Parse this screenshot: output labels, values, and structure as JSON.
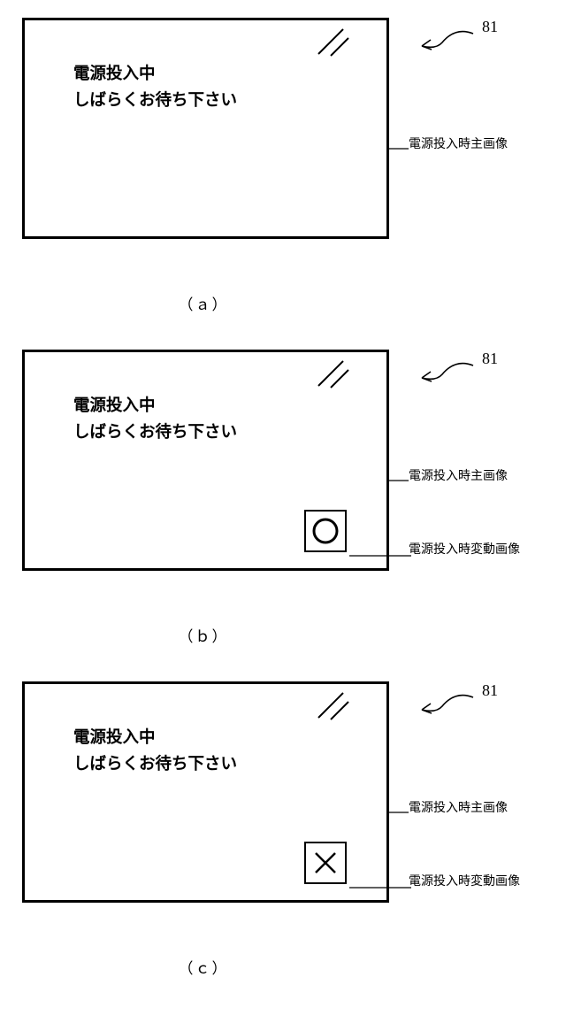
{
  "refNumber": "81",
  "screenText": {
    "line1": "電源投入中",
    "line2": "しばらくお待ち下さい"
  },
  "callouts": {
    "main": "電源投入時主画像",
    "sub": "電源投入時変動画像"
  },
  "labels": {
    "a": "（ａ）",
    "b": "（ｂ）",
    "c": "（ｃ）"
  },
  "panels": [
    {
      "showSubIcon": false,
      "subIconShape": null,
      "labelKey": "a"
    },
    {
      "showSubIcon": true,
      "subIconShape": "circle",
      "labelKey": "b"
    },
    {
      "showSubIcon": true,
      "subIconShape": "cross",
      "labelKey": "c"
    }
  ],
  "style": {
    "strokeColor": "#000000",
    "strokeWidth": 2.5,
    "screenBorderWidth": 3,
    "subIconSize": 48,
    "circleRadius": 13,
    "circleStroke": 3,
    "crossSize": 11,
    "crossStroke": 2.5,
    "glareLen1": 28,
    "glareLen2": 20,
    "fontSizeMain": 18.5,
    "fontSizeCallout": 14,
    "fontSizeRef": 18,
    "fontSizeLabel": 17
  }
}
